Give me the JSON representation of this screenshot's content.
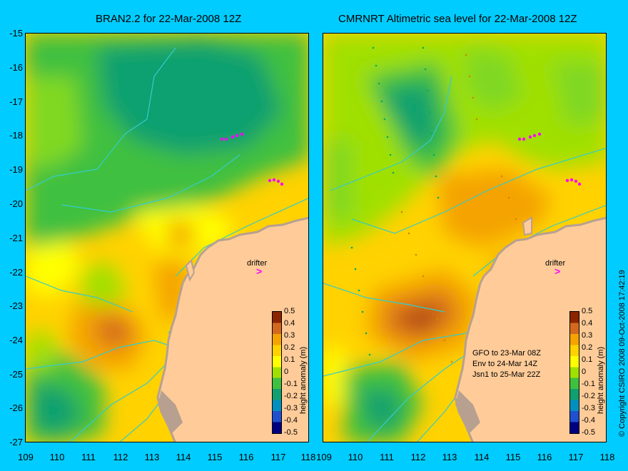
{
  "panels": {
    "left": {
      "title": "BRAN2.2 for 22-Mar-2008 12Z"
    },
    "right": {
      "title": "CMRNRT Altimetric sea level  for 22-Mar-2008 12Z"
    }
  },
  "axes": {
    "y_ticks": [
      "-15",
      "-16",
      "-17",
      "-18",
      "-19",
      "-20",
      "-21",
      "-22",
      "-23",
      "-24",
      "-25",
      "-26",
      "-27"
    ],
    "x_ticks": [
      "109",
      "110",
      "111",
      "112",
      "113",
      "114",
      "115",
      "116",
      "117",
      "118"
    ]
  },
  "colorbar": {
    "label": "height anomaly (m)",
    "ticks": [
      "0.5",
      "0.4",
      "0.3",
      "0.2",
      "0.1",
      "0",
      "-0.1",
      "-0.2",
      "-0.3",
      "-0.4",
      "-0.5"
    ],
    "colors": [
      "#8b2500",
      "#d2691e",
      "#f4a300",
      "#ffd200",
      "#ffff00",
      "#a0e000",
      "#40c040",
      "#10a070",
      "#0090c0",
      "#2050d0",
      "#000080"
    ]
  },
  "drifter_label": "drifter",
  "drifter_marker": ">",
  "missions": [
    "GFO to 23-Mar 08Z",
    "Env to 24-Mar 14Z",
    "Jsn1 to 25-Mar 22Z"
  ],
  "copyright": "© Copyright CSIRO 2008    09-Oct-2008 17:42:19",
  "colors": {
    "background": "#00ccff",
    "land": "#ffcc99",
    "coast": "#b8a090",
    "isobath": "#33cccc",
    "drifter": "#ff00ff"
  }
}
